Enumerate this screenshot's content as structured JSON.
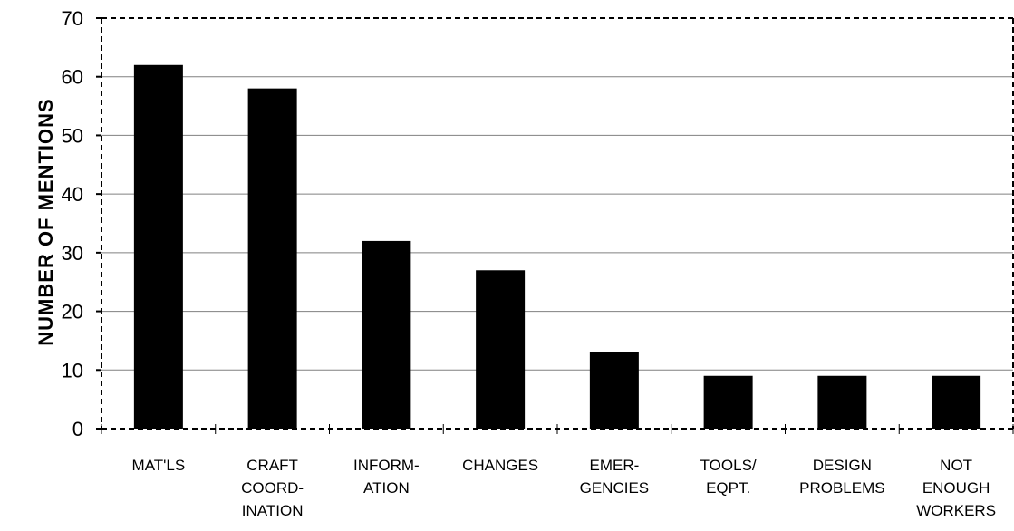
{
  "chart_data": {
    "type": "bar",
    "title": "",
    "xlabel": "",
    "ylabel": "NUMBER   OF   MENTIONS",
    "ylim": [
      0,
      70
    ],
    "yticks": [
      0,
      10,
      20,
      30,
      40,
      50,
      60,
      70
    ],
    "grid": true,
    "categories": [
      [
        "MAT'LS"
      ],
      [
        "CRAFT",
        "COORD-",
        "INATION"
      ],
      [
        "INFORM-",
        "ATION"
      ],
      [
        "CHANGES"
      ],
      [
        "EMER-",
        "GENCIES"
      ],
      [
        "TOOLS/",
        "EQPT."
      ],
      [
        "DESIGN",
        "PROBLEMS"
      ],
      [
        "NOT",
        "ENOUGH",
        "WORKERS"
      ]
    ],
    "values": [
      62,
      58,
      32,
      27,
      13,
      9,
      9,
      9
    ],
    "colors": {
      "bar": "#000000",
      "grid": "#808080",
      "axis": "#000000"
    }
  }
}
